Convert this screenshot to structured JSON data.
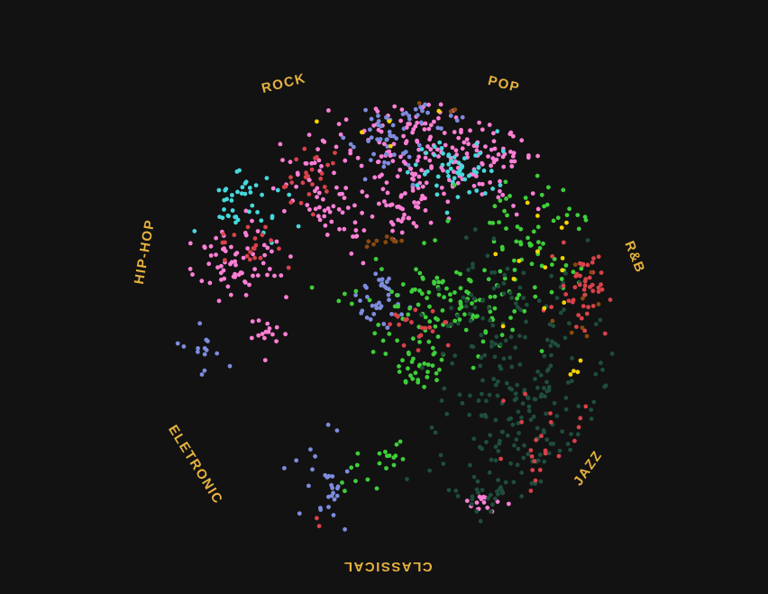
{
  "chart_data": {
    "type": "scatter",
    "title": "",
    "background_color": "#121212",
    "label_color": "#e7b23f",
    "genre_labels": [
      "ROCK",
      "POP",
      "R&B",
      "JAZZ",
      "CLASSICAL",
      "ELETRONIC",
      "HIP-HOP"
    ],
    "series": [
      {
        "color": "#ff7fd6",
        "approx_points": 420
      },
      {
        "color": "#46d9de",
        "approx_points": 120
      },
      {
        "color": "#7d8cde",
        "approx_points": 140
      },
      {
        "color": "#3ecf3a",
        "approx_points": 240
      },
      {
        "color": "#1f4d3c",
        "approx_points": 320
      },
      {
        "color": "#d9424a",
        "approx_points": 170
      },
      {
        "color": "#f5d300",
        "approx_points": 30
      },
      {
        "color": "#8a4a0e",
        "approx_points": 30
      }
    ],
    "grid": false,
    "axes": false,
    "legend": "none"
  }
}
